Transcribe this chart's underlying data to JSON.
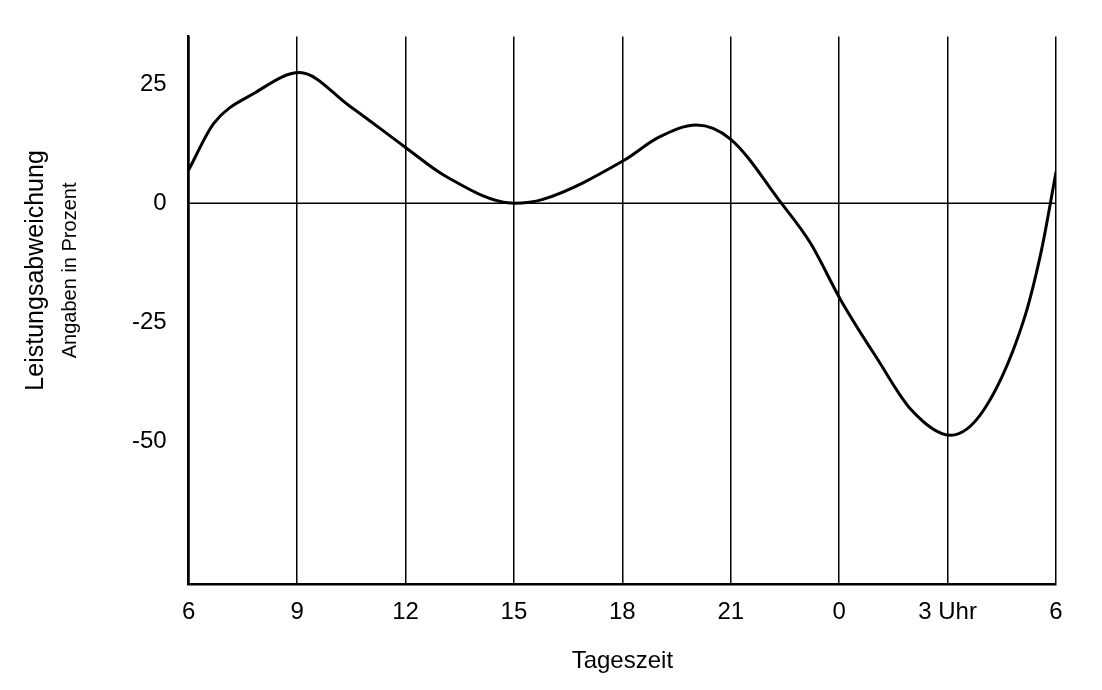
{
  "chart_data": {
    "type": "line",
    "xlabel": "Tageszeit",
    "ylabel": "Leistungsabweichung\nAngaben in Prozent",
    "x": [
      "--01-01T06:00",
      "--01-01T06:42",
      "--01-01T07:48",
      "--01-01T09:04",
      "--01-01T10:27",
      "--01-01T12:00",
      "--01-01T13:06",
      "--01-01T15:00",
      "--01-01T15:48",
      "--01-01T18:03",
      "--01-01T19:00",
      "--01-01T20:03",
      "--01-01T21:00",
      "--01-01T22:24",
      "--01-01T23:12",
      "--01-02T00:03",
      "--01-02T01:04",
      "--01-02T02:00",
      "--01-02T03:05",
      "--01-02T04:00",
      "--01-02T05:06",
      "--01-02T05:36",
      "--01-02T06:00"
    ],
    "series": [
      {
        "color": "#000000",
        "values": [
          7,
          16.8,
          23,
          27.4,
          20.4,
          11.7,
          5.7,
          0,
          0.8,
          9,
          13.8,
          16.4,
          13.4,
          0,
          -8.3,
          -20.4,
          -32.8,
          -43.4,
          -48.7,
          -43.4,
          -24.7,
          -9.8,
          6.5
        ]
      }
    ],
    "xlim": [
      "--01-01T06:00",
      "--01-02T06:00"
    ],
    "xticks": [
      {
        "value": "--01-01T06:00",
        "label": "6"
      },
      {
        "value": "--01-01T09:00",
        "label": "9"
      },
      {
        "value": "--01-01T12:00",
        "label": "12"
      },
      {
        "value": "--01-01T15:00",
        "label": "15"
      },
      {
        "value": "--01-01T18:00",
        "label": "18"
      },
      {
        "value": "--01-01T21:00",
        "label": "21"
      },
      {
        "value": "--01-02T00:00",
        "label": "0"
      },
      {
        "value": "--01-02T03:00",
        "label": "3 Uhr"
      },
      {
        "value": "--01-02T06:00",
        "label": "6"
      }
    ],
    "ylim": [
      -80,
      35
    ],
    "yticks": [
      25,
      0,
      -25,
      -50
    ],
    "ref_lines": [
      {
        "axis": "y",
        "value": 0
      }
    ],
    "grid": "x",
    "legend": false,
    "marker": "none",
    "line_style": "solid"
  }
}
